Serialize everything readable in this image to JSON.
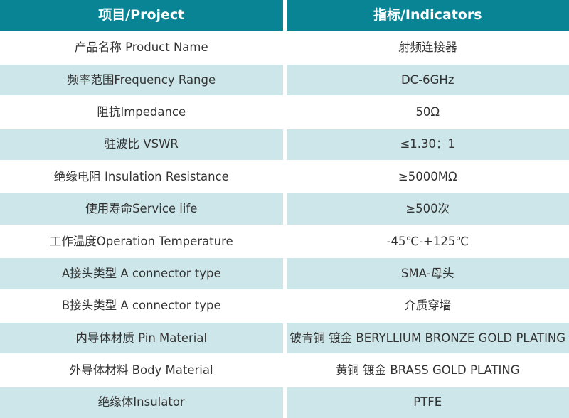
{
  "colors": {
    "header_bg": "#088494",
    "header_text": "#ffffff",
    "row_white_bg": "#ffffff",
    "row_alt_bg": "#cde6ea",
    "body_text": "#333333"
  },
  "table": {
    "header": {
      "project": "项目/Project",
      "indicators": "指标/Indicators"
    },
    "rows": [
      {
        "project": "产品名称 Product Name",
        "indicator": "射频连接器"
      },
      {
        "project": "频率范围Frequency Range",
        "indicator": "DC-6GHz"
      },
      {
        "project": "阻抗Impedance",
        "indicator": "50Ω"
      },
      {
        "project": "驻波比 VSWR",
        "indicator": "≤1.30：1"
      },
      {
        "project": "绝缘电阻 Insulation Resistance",
        "indicator": "≥5000MΩ"
      },
      {
        "project": "使用寿命Service life",
        "indicator": "≥500次"
      },
      {
        "project": "工作温度Operation Temperature",
        "indicator": "-45℃-+125℃"
      },
      {
        "project": "A接头类型 A connector type",
        "indicator": "SMA-母头"
      },
      {
        "project": "B接头类型 A connector type",
        "indicator": "介质穿墙"
      },
      {
        "project": "内导体材质 Pin Material",
        "indicator": "铍青铜 镀金 BERYLLIUM BRONZE GOLD PLATING"
      },
      {
        "project": "外导体材料 Body Material",
        "indicator": "黄铜 镀金 BRASS GOLD PLATING"
      },
      {
        "project": "绝缘体Insulator",
        "indicator": "PTFE"
      }
    ]
  }
}
